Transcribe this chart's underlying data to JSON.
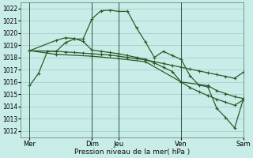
{
  "bg_color": "#c8ece8",
  "grid_color": "#a0ccc4",
  "line_color": "#2d5a27",
  "xlabel": "Pression niveau de la mer( hPa )",
  "ylim": [
    1011.5,
    1022.5
  ],
  "yticks": [
    1012,
    1013,
    1014,
    1015,
    1016,
    1017,
    1018,
    1019,
    1020,
    1021,
    1022
  ],
  "xlim": [
    0,
    25
  ],
  "xtick_positions": [
    1,
    8,
    11,
    18,
    25
  ],
  "xtick_labels": [
    "Mer",
    "Dim",
    "Jeu",
    "Ven",
    "Sam"
  ],
  "vlines": [
    1,
    8,
    11,
    18,
    25
  ],
  "series": [
    {
      "x": [
        1,
        2,
        3,
        4,
        5,
        6,
        7,
        8,
        9,
        10,
        11,
        12,
        13,
        14,
        15,
        16,
        17,
        18,
        19,
        20,
        21,
        22,
        23,
        24,
        25
      ],
      "y": [
        1015.7,
        1016.7,
        1018.5,
        1018.5,
        1019.2,
        1019.5,
        1019.5,
        1021.15,
        1021.8,
        1021.85,
        1021.75,
        1021.75,
        1020.4,
        1019.25,
        1018.0,
        1018.5,
        1018.15,
        1017.85,
        1016.5,
        1015.75,
        1015.6,
        1013.85,
        1013.1,
        1012.25,
        1014.65
      ]
    },
    {
      "x": [
        1,
        4,
        5,
        6,
        7,
        8,
        9,
        10,
        11,
        12,
        13,
        14,
        15,
        16,
        17,
        18,
        19,
        20,
        21,
        22,
        23,
        24,
        25
      ],
      "y": [
        1018.55,
        1019.4,
        1019.6,
        1019.55,
        1019.3,
        1018.6,
        1018.5,
        1018.4,
        1018.3,
        1018.15,
        1018.0,
        1017.85,
        1017.55,
        1017.2,
        1016.85,
        1016.0,
        1015.55,
        1015.2,
        1014.9,
        1014.6,
        1014.35,
        1014.1,
        1014.55
      ]
    },
    {
      "x": [
        1,
        4,
        8,
        11,
        14,
        18,
        21,
        22,
        23,
        24,
        25
      ],
      "y": [
        1018.55,
        1018.25,
        1018.1,
        1017.9,
        1017.65,
        1016.0,
        1015.7,
        1015.3,
        1015.05,
        1014.8,
        1014.65
      ]
    },
    {
      "x": [
        1,
        4,
        5,
        6,
        7,
        8,
        9,
        10,
        11,
        12,
        13,
        14,
        15,
        16,
        17,
        18,
        19,
        20,
        21,
        22,
        23,
        24,
        25
      ],
      "y": [
        1018.55,
        1018.5,
        1018.45,
        1018.4,
        1018.35,
        1018.3,
        1018.25,
        1018.2,
        1018.1,
        1018.0,
        1017.9,
        1017.8,
        1017.65,
        1017.5,
        1017.35,
        1017.2,
        1017.05,
        1016.9,
        1016.75,
        1016.6,
        1016.45,
        1016.3,
        1016.8
      ]
    }
  ]
}
